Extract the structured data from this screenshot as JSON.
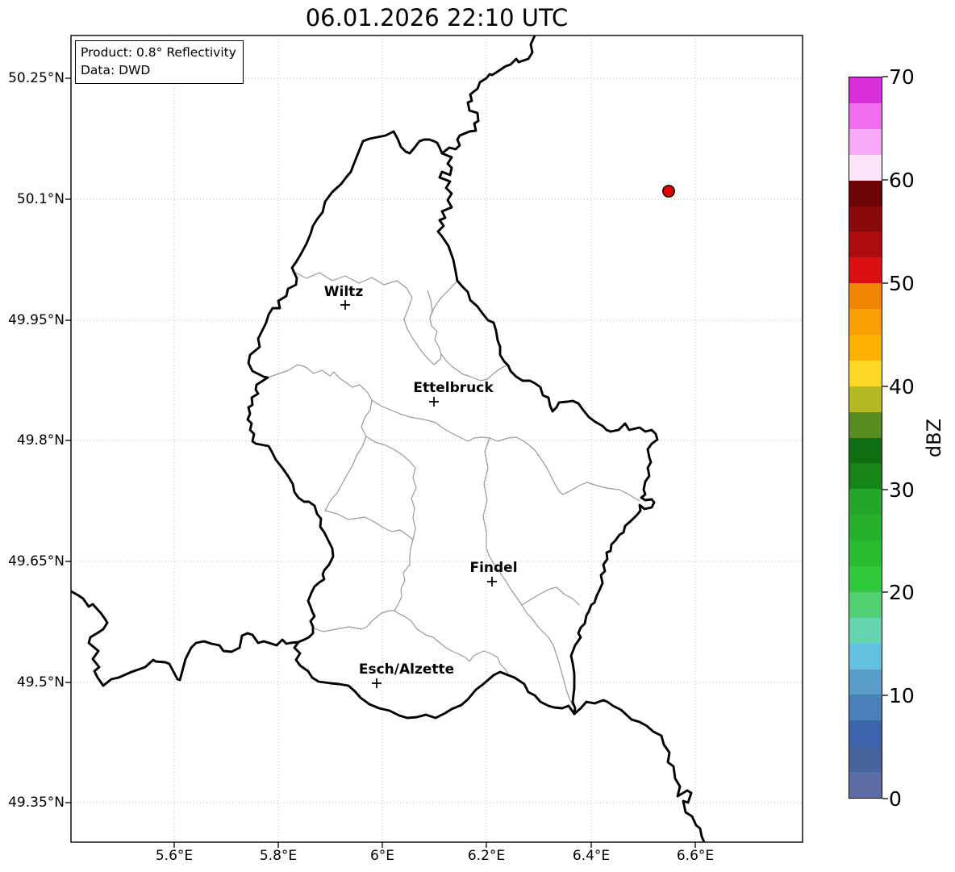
{
  "title": "06.01.2026 22:10 UTC",
  "info_box": {
    "product": "Product: 0.8° Reflectivity",
    "data_source": "Data: DWD"
  },
  "map": {
    "y_tick_labels": [
      "50.25°N",
      "50.1°N",
      "49.95°N",
      "49.8°N",
      "49.65°N",
      "49.5°N",
      "49.35°N"
    ],
    "x_tick_labels": [
      "5.6°E",
      "5.8°E",
      "6°E",
      "6.2°E",
      "6.4°E",
      "6.6°E"
    ],
    "cities": {
      "wiltz": "Wiltz",
      "ettelbruck": "Ettelbruck",
      "findel": "Findel",
      "esch": "Esch/Alzette"
    },
    "radar_marker_color": "#e60000",
    "country_border_color": "#000000",
    "district_border_color": "#999999"
  },
  "colorbar": {
    "label": "dBZ",
    "min": 0,
    "max": 70,
    "tick_labels": [
      "0",
      "10",
      "20",
      "30",
      "40",
      "50",
      "60",
      "70"
    ],
    "colors": [
      "#5e6da5",
      "#47639e",
      "#3d63ad",
      "#4a7fba",
      "#5b9dc9",
      "#63c0df",
      "#65d5b0",
      "#55cf74",
      "#2fc93a",
      "#29bc31",
      "#27b02b",
      "#25a52a",
      "#168418",
      "#0f6d14",
      "#5a8b20",
      "#b5b923",
      "#fcd927",
      "#fcb105",
      "#f9a007",
      "#f28505",
      "#dd0f15",
      "#ac0c0e",
      "#8c090b",
      "#6d0408",
      "#fbe5fb",
      "#f9a8f9",
      "#f06ef0",
      "#d92ed9"
    ]
  }
}
